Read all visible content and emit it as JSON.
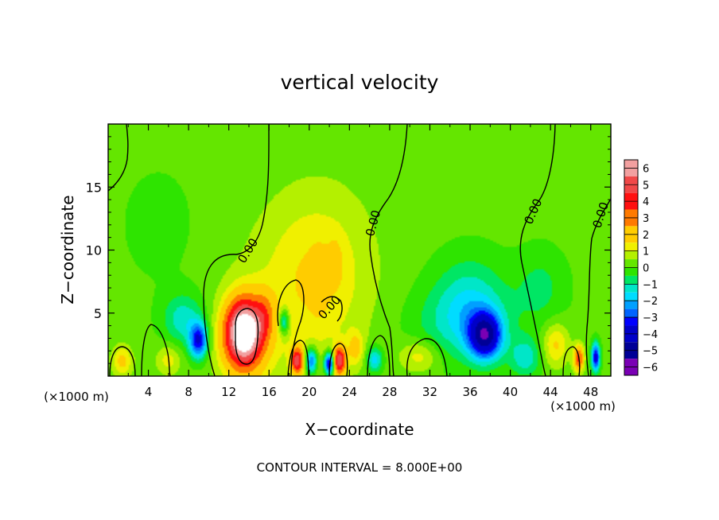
{
  "chart_data": {
    "type": "heatmap",
    "title": "vertical velocity",
    "xlabel": "X−coordinate",
    "ylabel": "Z−coordinate",
    "x_unit_left": "(×1000 m)",
    "x_unit_right": "(×1000 m)",
    "xlim": [
      0,
      50
    ],
    "ylim": [
      0,
      20
    ],
    "x_ticks": [
      4,
      8,
      12,
      16,
      20,
      24,
      28,
      32,
      36,
      40,
      44,
      48
    ],
    "y_ticks": [
      5,
      10,
      15
    ],
    "footer": "CONTOUR INTERVAL = 8.000E+00",
    "contour_label": "0.00",
    "colorbar": {
      "labels": [
        "6",
        "5",
        "4",
        "3",
        "2",
        "1",
        "0",
        "−1",
        "−2",
        "−3",
        "−4",
        "−5",
        "−6"
      ],
      "bands": [
        {
          "from": 5.5,
          "to": 6.5,
          "color": "#f2a0a0"
        },
        {
          "from": 4.5,
          "to": 5.5,
          "color": "#f04848"
        },
        {
          "from": 3.5,
          "to": 4.5,
          "color": "#ff1010"
        },
        {
          "from": 2.5,
          "to": 3.5,
          "color": "#ff7a00"
        },
        {
          "from": 1.5,
          "to": 2.5,
          "color": "#ffcc00"
        },
        {
          "from": 1.0,
          "to": 1.5,
          "color": "#f0f000"
        },
        {
          "from": 0.5,
          "to": 1.0,
          "color": "#b4f000"
        },
        {
          "from": 0.0,
          "to": 0.5,
          "color": "#64e600"
        },
        {
          "from": -0.5,
          "to": 0.0,
          "color": "#2ee400"
        },
        {
          "from": -1.0,
          "to": -0.5,
          "color": "#00e664"
        },
        {
          "from": -1.5,
          "to": -1.0,
          "color": "#00e6c8"
        },
        {
          "from": -2.0,
          "to": -1.5,
          "color": "#00dcff"
        },
        {
          "from": -2.5,
          "to": -2.0,
          "color": "#00a0ff"
        },
        {
          "from": -3.0,
          "to": -2.5,
          "color": "#0064ff"
        },
        {
          "from": -3.5,
          "to": -3.0,
          "color": "#0000ff"
        },
        {
          "from": -4.5,
          "to": -3.5,
          "color": "#0000c8"
        },
        {
          "from": -5.5,
          "to": -4.5,
          "color": "#000096"
        },
        {
          "from": -6.5,
          "to": -5.5,
          "color": "#7a00b4"
        }
      ]
    },
    "features": [
      {
        "x": 13.5,
        "z": 3.5,
        "w": 6.5,
        "sx": 1.7,
        "sz": 2.4
      },
      {
        "x": 13.5,
        "z": 2.8,
        "w": 2.0,
        "sx": 2.6,
        "sz": 3.6
      },
      {
        "x": 15.5,
        "z": 4.8,
        "w": 1.6,
        "sx": 1.0,
        "sz": 1.8
      },
      {
        "x": 19.5,
        "z": 6.5,
        "w": 1.0,
        "sx": 6.0,
        "sz": 7.0
      },
      {
        "x": 21.5,
        "z": 9.5,
        "w": 0.6,
        "sx": 5.0,
        "sz": 6.0
      },
      {
        "x": 21.0,
        "z": 7.5,
        "w": 0.8,
        "sx": 0.8,
        "sz": 2.2
      },
      {
        "x": 22.6,
        "z": 9.0,
        "w": 0.7,
        "sx": 0.7,
        "sz": 1.8
      },
      {
        "x": 23.0,
        "z": 1.2,
        "w": 4.8,
        "sx": 0.6,
        "sz": 1.1
      },
      {
        "x": 18.8,
        "z": 1.2,
        "w": 4.5,
        "sx": 0.6,
        "sz": 1.0
      },
      {
        "x": 24.6,
        "z": 2.2,
        "w": 1.4,
        "sx": 0.8,
        "sz": 1.3
      },
      {
        "x": 1.4,
        "z": 1.2,
        "w": 1.6,
        "sx": 1.0,
        "sz": 1.2
      },
      {
        "x": 6.0,
        "z": 1.3,
        "w": 1.1,
        "sx": 1.2,
        "sz": 1.2
      },
      {
        "x": 31.0,
        "z": 1.6,
        "w": 1.2,
        "sx": 2.0,
        "sz": 1.3
      },
      {
        "x": 44.5,
        "z": 2.5,
        "w": 1.5,
        "sx": 1.3,
        "sz": 1.7
      },
      {
        "x": 46.8,
        "z": 1.4,
        "w": 3.5,
        "sx": 0.5,
        "sz": 1.0
      },
      {
        "x": 37.5,
        "z": 3.2,
        "w": -4.6,
        "sx": 1.6,
        "sz": 1.8
      },
      {
        "x": 36.0,
        "z": 6.0,
        "w": -1.3,
        "sx": 3.5,
        "sz": 3.5
      },
      {
        "x": 35.0,
        "z": 4.0,
        "w": -1.0,
        "sx": 5.0,
        "sz": 3.0
      },
      {
        "x": 9.0,
        "z": 2.8,
        "w": -3.6,
        "sx": 0.9,
        "sz": 1.4
      },
      {
        "x": 7.5,
        "z": 4.5,
        "w": -1.5,
        "sx": 2.0,
        "sz": 2.0
      },
      {
        "x": 17.5,
        "z": 4.3,
        "w": -2.4,
        "sx": 0.5,
        "sz": 1.0
      },
      {
        "x": 22.0,
        "z": 1.0,
        "w": -4.5,
        "sx": 0.5,
        "sz": 0.9
      },
      {
        "x": 20.2,
        "z": 1.2,
        "w": -3.2,
        "sx": 0.6,
        "sz": 1.0
      },
      {
        "x": 26.5,
        "z": 1.3,
        "w": -2.0,
        "sx": 0.8,
        "sz": 1.0
      },
      {
        "x": 41.5,
        "z": 1.5,
        "w": -1.5,
        "sx": 1.5,
        "sz": 1.5
      },
      {
        "x": 48.5,
        "z": 1.5,
        "w": -4.0,
        "sx": 0.4,
        "sz": 1.1
      },
      {
        "x": 43.0,
        "z": 7.0,
        "w": -0.8,
        "sx": 2.5,
        "sz": 3.0
      },
      {
        "x": 5.0,
        "z": 12.0,
        "w": -0.3,
        "sx": 4.0,
        "sz": 5.0
      }
    ]
  }
}
